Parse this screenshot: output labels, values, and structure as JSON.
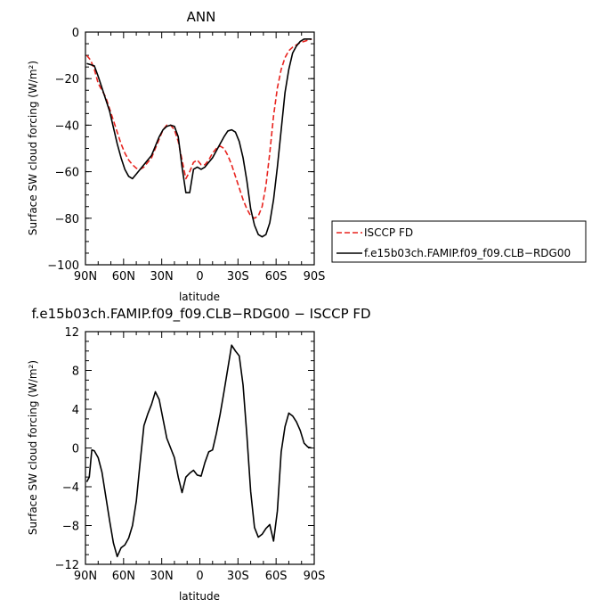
{
  "chart_data": [
    {
      "type": "line",
      "title": "ANN",
      "xlabel": "latitude",
      "ylabel": "Surface SW cloud forcing (W/m²)",
      "xlim": [
        90,
        -90
      ],
      "ylim": [
        -100,
        0
      ],
      "x_ticks": [
        90,
        60,
        30,
        0,
        -30,
        -60,
        -90
      ],
      "x_tick_labels": [
        "90N",
        "60N",
        "30N",
        "0",
        "30S",
        "60S",
        "90S"
      ],
      "y_ticks": [
        0,
        -20,
        -40,
        -60,
        -80,
        -100
      ],
      "y_tick_labels": [
        "0",
        "−20",
        "−40",
        "−60",
        "−80",
        "−100"
      ],
      "legend_location": "right",
      "series": [
        {
          "name": "ISCCP FD",
          "color": "#e8241f",
          "dash": "dashed",
          "x": [
            89,
            86,
            83,
            80,
            77,
            74,
            71,
            68,
            65,
            62,
            59,
            56,
            53,
            50,
            47,
            44,
            41,
            38,
            35,
            32,
            29,
            26,
            23,
            20,
            17,
            14,
            11,
            8,
            5,
            2,
            -1,
            -4,
            -7,
            -10,
            -13,
            -16,
            -19,
            -22,
            -25,
            -28,
            -31,
            -34,
            -37,
            -40,
            -43,
            -46,
            -49,
            -52,
            -55,
            -58,
            -61,
            -64,
            -67,
            -70,
            -73,
            -76,
            -79,
            -82,
            -85,
            -88
          ],
          "y": [
            -10,
            -12,
            -16,
            -22,
            -25,
            -28,
            -33,
            -38,
            -43,
            -48,
            -52,
            -55,
            -57,
            -58.5,
            -59,
            -58,
            -56,
            -54,
            -50,
            -46,
            -42,
            -40,
            -40,
            -42,
            -47,
            -55,
            -63,
            -60,
            -56,
            -55,
            -57,
            -57,
            -55,
            -52,
            -50,
            -49,
            -50,
            -53,
            -57,
            -62,
            -67,
            -72,
            -76,
            -79,
            -80,
            -79,
            -75,
            -66,
            -52,
            -36,
            -24,
            -16,
            -11,
            -8,
            -6.5,
            -5.5,
            -4.5,
            -4,
            -3.5,
            -3
          ]
        },
        {
          "name": "f.e15b03ch.FAMIP.f09_f09.CLB−RDG00",
          "color": "#000000",
          "dash": "solid",
          "x": [
            89,
            86,
            83,
            80,
            77,
            74,
            71,
            68,
            65,
            62,
            59,
            56,
            53,
            50,
            47,
            44,
            41,
            38,
            35,
            32,
            29,
            26,
            23,
            20,
            17,
            14,
            11,
            8,
            5,
            2,
            -1,
            -4,
            -7,
            -10,
            -13,
            -16,
            -19,
            -22,
            -25,
            -28,
            -31,
            -34,
            -37,
            -40,
            -43,
            -46,
            -49,
            -52,
            -55,
            -58,
            -61,
            -64,
            -67,
            -70,
            -73,
            -76,
            -79,
            -82,
            -85,
            -88
          ],
          "y": [
            -13.5,
            -14,
            -14.5,
            -19,
            -24,
            -29,
            -34,
            -41,
            -48,
            -54,
            -59,
            -62,
            -63,
            -61,
            -59,
            -57,
            -55,
            -53,
            -49,
            -45,
            -42,
            -40.5,
            -40,
            -40.5,
            -45,
            -58,
            -69,
            -69,
            -59,
            -58,
            -59,
            -58,
            -56,
            -54,
            -51,
            -48,
            -45,
            -42.5,
            -42,
            -43,
            -47,
            -54,
            -64,
            -76,
            -83,
            -87,
            -88,
            -87,
            -82,
            -72,
            -58,
            -42,
            -26,
            -16,
            -9,
            -6,
            -4,
            -3,
            -3,
            -3
          ]
        }
      ]
    },
    {
      "type": "line",
      "title": "f.e15b03ch.FAMIP.f09_f09.CLB−RDG00 − ISCCP FD",
      "xlabel": "latitude",
      "ylabel": "Surface SW cloud forcing (W/m²)",
      "xlim": [
        90,
        -90
      ],
      "ylim": [
        -12,
        12
      ],
      "x_ticks": [
        90,
        60,
        30,
        0,
        -30,
        -60,
        -90
      ],
      "x_tick_labels": [
        "90N",
        "60N",
        "30N",
        "0",
        "30S",
        "60S",
        "90S"
      ],
      "y_ticks": [
        12,
        8,
        4,
        0,
        -4,
        -8,
        -12
      ],
      "y_tick_labels": [
        "12",
        "8",
        "4",
        "0",
        "−4",
        "−8",
        "−12"
      ],
      "series": [
        {
          "color": "#000000",
          "dash": "solid",
          "x": [
            89,
            87,
            85,
            83,
            80,
            77,
            74,
            71,
            68,
            65,
            62,
            59,
            56,
            53,
            50,
            47,
            44,
            41,
            38,
            35,
            32,
            29,
            26,
            23,
            20,
            17,
            14,
            11,
            8,
            5,
            2,
            -1,
            -4,
            -7,
            -10,
            -13,
            -16,
            -19,
            -22,
            -25,
            -28,
            -31,
            -34,
            -37,
            -40,
            -43,
            -46,
            -49,
            -52,
            -55,
            -58,
            -61,
            -64,
            -67,
            -70,
            -73,
            -76,
            -79,
            -82,
            -85,
            -88
          ],
          "y": [
            -3.5,
            -3,
            -0.2,
            -0.3,
            -1,
            -2.5,
            -5,
            -7.5,
            -9.8,
            -11.2,
            -10.3,
            -10,
            -9.3,
            -8,
            -5.5,
            -1.5,
            2.3,
            3.5,
            4.5,
            5.8,
            5,
            3,
            1,
            0,
            -1,
            -3,
            -4.6,
            -3,
            -2.6,
            -2.3,
            -2.8,
            -2.9,
            -1.5,
            -0.4,
            -0.2,
            1.5,
            3.5,
            5.8,
            8.2,
            10.6,
            10,
            9.5,
            6.5,
            1.3,
            -4.5,
            -8.2,
            -9.2,
            -8.9,
            -8.3,
            -7.9,
            -9.6,
            -6.5,
            -0.4,
            2.2,
            3.6,
            3.3,
            2.7,
            1.8,
            0.5,
            0.1,
            0
          ]
        }
      ]
    }
  ]
}
